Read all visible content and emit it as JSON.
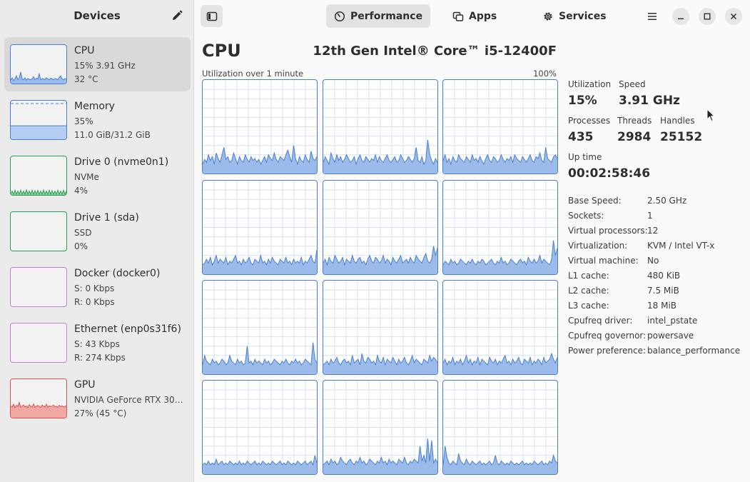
{
  "sidebar": {
    "title": "Devices",
    "edit_icon": "pencil-icon",
    "devices": [
      {
        "name": "CPU",
        "line1": "15% 3.91 GHz",
        "line2": "32 °C",
        "color": "#4a7fcf",
        "fill": "#9bbbeb",
        "selected": true,
        "graph": [
          0.1,
          0.15,
          0.08,
          0.12,
          0.2,
          0.1,
          0.14,
          0.3,
          0.12,
          0.1,
          0.15,
          0.09,
          0.13,
          0.11,
          0.1,
          0.12,
          0.18,
          0.1,
          0.14,
          0.12,
          0.25,
          0.1,
          0.13,
          0.12,
          0.1,
          0.15,
          0.12,
          0.1,
          0.14,
          0.12,
          0.1,
          0.13,
          0.12,
          0.1,
          0.16,
          0.2,
          0.12,
          0.1,
          0.13,
          0.12
        ]
      },
      {
        "name": "Memory",
        "line1": "35%",
        "line2": "11.0 GiB/31.2 GiB",
        "color": "#4a7fcf",
        "fill": "#b4cdf1",
        "selected": false,
        "graph": [
          0.35
        ]
      },
      {
        "name": "Drive 0 (nvme0n1)",
        "line1": "NVMe",
        "line2": "4%",
        "color": "#2e9e52",
        "fill": "#8fd3a5",
        "selected": false,
        "graph": [
          0.02,
          0.1,
          0.02,
          0.12,
          0.02,
          0.1,
          0.02,
          0.12,
          0.02,
          0.1,
          0.02,
          0.13,
          0.02,
          0.1,
          0.02,
          0.12,
          0.02,
          0.11,
          0.02,
          0.12,
          0.02,
          0.1,
          0.02,
          0.13,
          0.02,
          0.1,
          0.02,
          0.12,
          0.02,
          0.11,
          0.02,
          0.1,
          0.02,
          0.12,
          0.02,
          0.1,
          0.02,
          0.12,
          0.02,
          0.1
        ]
      },
      {
        "name": "Drive 1 (sda)",
        "line1": "SSD",
        "line2": "0%",
        "color": "#2e9e52",
        "fill": "#8fd3a5",
        "selected": false,
        "graph": [
          0
        ]
      },
      {
        "name": "Docker (docker0)",
        "line1": "S: 0 Kbps",
        "line2": "R: 0 Kbps",
        "color": "#c97bd8",
        "fill": "#e5c2ec",
        "selected": false,
        "graph": [
          0
        ]
      },
      {
        "name": "Ethernet (enp0s31f6)",
        "line1": "S: 43 Kbps",
        "line2": "R: 274 Kbps",
        "color": "#c97bd8",
        "fill": "#e5c2ec",
        "selected": false,
        "graph": [
          0
        ]
      },
      {
        "name": "GPU",
        "line1": "NVIDIA GeForce RTX 30…",
        "line2": "27% (45 °C)",
        "color": "#d9534f",
        "fill": "#f1a8a5",
        "selected": false,
        "graph": [
          0.3,
          0.28,
          0.35,
          0.26,
          0.32,
          0.29,
          0.4,
          0.27,
          0.3,
          0.33,
          0.28,
          0.31,
          0.26,
          0.34,
          0.3,
          0.28,
          0.36,
          0.27,
          0.3,
          0.32,
          0.29,
          0.27,
          0.33,
          0.3,
          0.28,
          0.35,
          0.27,
          0.31,
          0.29,
          0.3,
          0.33,
          0.28,
          0.3,
          0.27,
          0.32,
          0.29,
          0.31,
          0.28,
          0.3,
          0.3
        ]
      }
    ]
  },
  "header": {
    "sidebar_toggle_icon": "sidebar-toggle-icon",
    "tabs": [
      {
        "label": "Performance",
        "icon": "gauge-icon",
        "active": true
      },
      {
        "label": "Apps",
        "icon": "apps-icon",
        "active": false
      },
      {
        "label": "Services",
        "icon": "gear-icon",
        "active": false
      }
    ],
    "menu_icon": "hamburger-menu-icon",
    "window_controls": [
      "minimize-icon",
      "maximize-icon",
      "close-icon"
    ]
  },
  "main": {
    "title": "CPU",
    "model": "12th Gen Intel® Core™ i5-12400F",
    "util_caption": "Utilization over 1 minute",
    "util_max": "100%",
    "grid_color": "#4a7fcf",
    "grid_fill": "#9bbbeb",
    "cores": [
      [
        0.1,
        0.15,
        0.12,
        0.2,
        0.14,
        0.18,
        0.1,
        0.22,
        0.16,
        0.12,
        0.2,
        0.28,
        0.15,
        0.18,
        0.12,
        0.14,
        0.22,
        0.16,
        0.1,
        0.18,
        0.14,
        0.12,
        0.2,
        0.15,
        0.12,
        0.18,
        0.14,
        0.16,
        0.12,
        0.15,
        0.1,
        0.14,
        0.18,
        0.12,
        0.2,
        0.16,
        0.14,
        0.22,
        0.15,
        0.12,
        0.18,
        0.16,
        0.14,
        0.2,
        0.25,
        0.18,
        0.12,
        0.3,
        0.16,
        0.1,
        0.18,
        0.14,
        0.12,
        0.2,
        0.15,
        0.12,
        0.24,
        0.16,
        0.14,
        0.18
      ],
      [
        0.12,
        0.18,
        0.14,
        0.1,
        0.22,
        0.16,
        0.12,
        0.2,
        0.14,
        0.18,
        0.12,
        0.15,
        0.2,
        0.16,
        0.12,
        0.14,
        0.18,
        0.1,
        0.16,
        0.2,
        0.14,
        0.12,
        0.18,
        0.15,
        0.12,
        0.16,
        0.14,
        0.2,
        0.12,
        0.18,
        0.14,
        0.12,
        0.16,
        0.2,
        0.14,
        0.12,
        0.15,
        0.18,
        0.12,
        0.14,
        0.2,
        0.16,
        0.12,
        0.14,
        0.18,
        0.15,
        0.12,
        0.16,
        0.28,
        0.14,
        0.12,
        0.18,
        0.1,
        0.14,
        0.36,
        0.2,
        0.14,
        0.1,
        0.16,
        0.12
      ],
      [
        0.14,
        0.2,
        0.12,
        0.16,
        0.1,
        0.18,
        0.14,
        0.12,
        0.2,
        0.16,
        0.14,
        0.12,
        0.18,
        0.15,
        0.12,
        0.2,
        0.14,
        0.16,
        0.12,
        0.18,
        0.14,
        0.1,
        0.16,
        0.2,
        0.14,
        0.12,
        0.18,
        0.16,
        0.12,
        0.14,
        0.2,
        0.15,
        0.12,
        0.16,
        0.14,
        0.18,
        0.12,
        0.2,
        0.16,
        0.14,
        0.12,
        0.18,
        0.15,
        0.12,
        0.16,
        0.2,
        0.14,
        0.12,
        0.18,
        0.16,
        0.22,
        0.14,
        0.12,
        0.28,
        0.16,
        0.14,
        0.12,
        0.18,
        0.2,
        0.16
      ],
      [
        0.1,
        0.12,
        0.16,
        0.12,
        0.18,
        0.1,
        0.14,
        0.2,
        0.12,
        0.16,
        0.14,
        0.12,
        0.18,
        0.1,
        0.14,
        0.12,
        0.16,
        0.2,
        0.12,
        0.14,
        0.1,
        0.16,
        0.12,
        0.14,
        0.18,
        0.12,
        0.1,
        0.16,
        0.14,
        0.12,
        0.2,
        0.12,
        0.14,
        0.1,
        0.16,
        0.12,
        0.18,
        0.14,
        0.12,
        0.1,
        0.16,
        0.14,
        0.12,
        0.18,
        0.12,
        0.14,
        0.1,
        0.16,
        0.12,
        0.14,
        0.12,
        0.18,
        0.1,
        0.14,
        0.12,
        0.16,
        0.2,
        0.14,
        0.12,
        0.26
      ],
      [
        0.12,
        0.16,
        0.1,
        0.18,
        0.14,
        0.12,
        0.2,
        0.16,
        0.12,
        0.14,
        0.18,
        0.1,
        0.16,
        0.14,
        0.12,
        0.2,
        0.14,
        0.12,
        0.16,
        0.18,
        0.12,
        0.14,
        0.1,
        0.16,
        0.2,
        0.14,
        0.12,
        0.18,
        0.16,
        0.12,
        0.14,
        0.2,
        0.12,
        0.16,
        0.14,
        0.1,
        0.18,
        0.14,
        0.12,
        0.16,
        0.2,
        0.12,
        0.14,
        0.16,
        0.12,
        0.18,
        0.14,
        0.12,
        0.2,
        0.16,
        0.14,
        0.12,
        0.18,
        0.22,
        0.14,
        0.12,
        0.16,
        0.3,
        0.2,
        0.28
      ],
      [
        0.1,
        0.14,
        0.12,
        0.1,
        0.16,
        0.12,
        0.14,
        0.1,
        0.12,
        0.16,
        0.14,
        0.12,
        0.1,
        0.14,
        0.12,
        0.16,
        0.12,
        0.1,
        0.14,
        0.12,
        0.16,
        0.14,
        0.1,
        0.12,
        0.14,
        0.16,
        0.12,
        0.1,
        0.14,
        0.12,
        0.18,
        0.12,
        0.14,
        0.1,
        0.12,
        0.16,
        0.14,
        0.12,
        0.1,
        0.14,
        0.16,
        0.12,
        0.14,
        0.1,
        0.18,
        0.14,
        0.12,
        0.16,
        0.12,
        0.14,
        0.2,
        0.12,
        0.16,
        0.14,
        0.12,
        0.1,
        0.16,
        0.36,
        0.2,
        0.28
      ],
      [
        0.1,
        0.2,
        0.14,
        0.12,
        0.1,
        0.16,
        0.12,
        0.14,
        0.1,
        0.12,
        0.16,
        0.14,
        0.1,
        0.12,
        0.2,
        0.14,
        0.12,
        0.1,
        0.16,
        0.12,
        0.14,
        0.1,
        0.12,
        0.3,
        0.12,
        0.14,
        0.1,
        0.16,
        0.12,
        0.14,
        0.12,
        0.1,
        0.16,
        0.12,
        0.14,
        0.1,
        0.12,
        0.16,
        0.14,
        0.12,
        0.1,
        0.14,
        0.12,
        0.16,
        0.12,
        0.1,
        0.14,
        0.12,
        0.16,
        0.12,
        0.14,
        0.1,
        0.12,
        0.16,
        0.14,
        0.12,
        0.1,
        0.34,
        0.16,
        0.12
      ],
      [
        0.1,
        0.12,
        0.14,
        0.1,
        0.16,
        0.12,
        0.14,
        0.18,
        0.12,
        0.1,
        0.14,
        0.16,
        0.12,
        0.14,
        0.1,
        0.2,
        0.12,
        0.14,
        0.16,
        0.1,
        0.22,
        0.14,
        0.12,
        0.18,
        0.16,
        0.12,
        0.14,
        0.1,
        0.2,
        0.14,
        0.12,
        0.18,
        0.1,
        0.16,
        0.14,
        0.12,
        0.18,
        0.14,
        0.1,
        0.16,
        0.12,
        0.14,
        0.18,
        0.12,
        0.1,
        0.14,
        0.2,
        0.12,
        0.16,
        0.14,
        0.12,
        0.1,
        0.16,
        0.14,
        0.12,
        0.2,
        0.14,
        0.18,
        0.16,
        0.12
      ],
      [
        0.12,
        0.16,
        0.1,
        0.14,
        0.12,
        0.18,
        0.1,
        0.14,
        0.12,
        0.16,
        0.1,
        0.14,
        0.2,
        0.12,
        0.16,
        0.1,
        0.14,
        0.12,
        0.18,
        0.1,
        0.16,
        0.14,
        0.12,
        0.1,
        0.18,
        0.14,
        0.12,
        0.16,
        0.1,
        0.14,
        0.12,
        0.16,
        0.2,
        0.12,
        0.14,
        0.1,
        0.16,
        0.12,
        0.14,
        0.18,
        0.12,
        0.1,
        0.16,
        0.14,
        0.12,
        0.18,
        0.1,
        0.14,
        0.12,
        0.16,
        0.14,
        0.1,
        0.18,
        0.12,
        0.14,
        0.16,
        0.22,
        0.16,
        0.12,
        0.18
      ],
      [
        0.1,
        0.12,
        0.1,
        0.14,
        0.1,
        0.12,
        0.1,
        0.16,
        0.1,
        0.12,
        0.14,
        0.1,
        0.12,
        0.1,
        0.14,
        0.12,
        0.1,
        0.12,
        0.1,
        0.14,
        0.1,
        0.12,
        0.1,
        0.14,
        0.12,
        0.1,
        0.12,
        0.14,
        0.1,
        0.12,
        0.1,
        0.14,
        0.12,
        0.1,
        0.12,
        0.1,
        0.14,
        0.12,
        0.1,
        0.12,
        0.14,
        0.1,
        0.12,
        0.1,
        0.14,
        0.12,
        0.1,
        0.12,
        0.1,
        0.14,
        0.12,
        0.1,
        0.12,
        0.14,
        0.1,
        0.12,
        0.14,
        0.1,
        0.2,
        0.12
      ],
      [
        0.1,
        0.12,
        0.14,
        0.1,
        0.16,
        0.12,
        0.14,
        0.1,
        0.12,
        0.18,
        0.14,
        0.12,
        0.1,
        0.14,
        0.16,
        0.12,
        0.1,
        0.14,
        0.12,
        0.18,
        0.12,
        0.14,
        0.1,
        0.12,
        0.16,
        0.14,
        0.12,
        0.1,
        0.14,
        0.12,
        0.18,
        0.12,
        0.14,
        0.1,
        0.16,
        0.12,
        0.14,
        0.12,
        0.1,
        0.16,
        0.14,
        0.12,
        0.18,
        0.12,
        0.1,
        0.14,
        0.12,
        0.16,
        0.14,
        0.12,
        0.3,
        0.14,
        0.2,
        0.12,
        0.38,
        0.14,
        0.36,
        0.12,
        0.16,
        0.12
      ],
      [
        0.1,
        0.3,
        0.18,
        0.12,
        0.1,
        0.14,
        0.12,
        0.1,
        0.22,
        0.14,
        0.12,
        0.1,
        0.16,
        0.12,
        0.1,
        0.14,
        0.12,
        0.1,
        0.12,
        0.14,
        0.1,
        0.12,
        0.1,
        0.12,
        0.14,
        0.1,
        0.12,
        0.2,
        0.12,
        0.1,
        0.14,
        0.12,
        0.1,
        0.12,
        0.1,
        0.14,
        0.12,
        0.1,
        0.12,
        0.1,
        0.12,
        0.14,
        0.1,
        0.12,
        0.1,
        0.12,
        0.1,
        0.14,
        0.12,
        0.1,
        0.12,
        0.14,
        0.1,
        0.12,
        0.1,
        0.14,
        0.12,
        0.2,
        0.14,
        0.12
      ]
    ]
  },
  "stats": {
    "utilization": {
      "label": "Utilization",
      "value": "15%"
    },
    "speed": {
      "label": "Speed",
      "value": "3.91 GHz"
    },
    "processes": {
      "label": "Processes",
      "value": "435"
    },
    "threads": {
      "label": "Threads",
      "value": "2984"
    },
    "handles": {
      "label": "Handles",
      "value": "25152"
    },
    "uptime": {
      "label": "Up time",
      "value": "00:02:58:46"
    }
  },
  "specs": [
    {
      "key": "Base Speed:",
      "value": "2.50 GHz"
    },
    {
      "key": "Sockets:",
      "value": "1"
    },
    {
      "key": "Virtual processors:",
      "value": "12"
    },
    {
      "key": "Virtualization:",
      "value": "KVM / Intel VT-x"
    },
    {
      "key": "Virtual machine:",
      "value": "No"
    },
    {
      "key": "L1 cache:",
      "value": "480 KiB"
    },
    {
      "key": "L2 cache:",
      "value": "7.5 MiB"
    },
    {
      "key": "L3 cache:",
      "value": "18 MiB"
    },
    {
      "key": "Cpufreq driver:",
      "value": "intel_pstate"
    },
    {
      "key": "Cpufreq governor:",
      "value": "powersave"
    },
    {
      "key": "Power preference:",
      "value": "balance_performance"
    }
  ]
}
